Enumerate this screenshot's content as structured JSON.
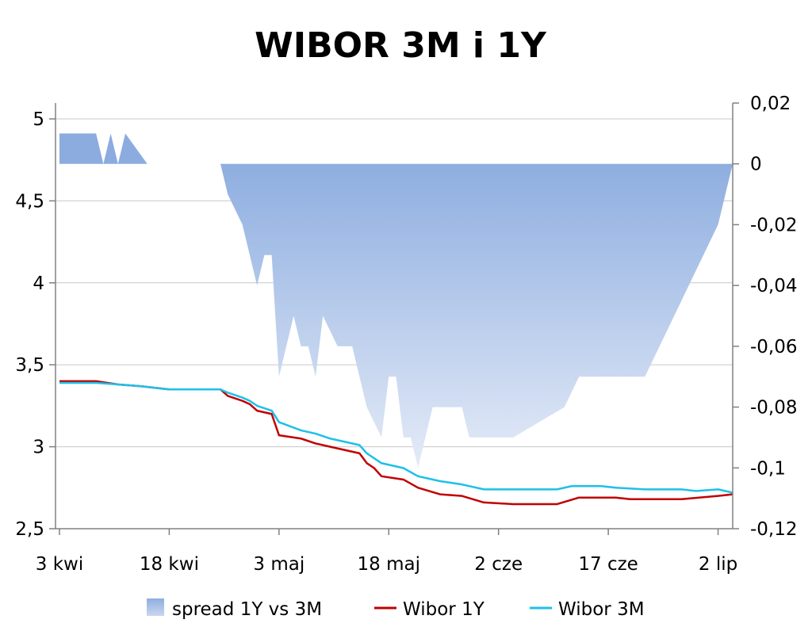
{
  "chart_data": {
    "type": "line",
    "title": "WIBOR 3M i 1Y",
    "x_tick_labels": [
      "3 kwi",
      "18 kwi",
      "3 maj",
      "18 maj",
      "2 cze",
      "17 cze",
      "2 lip"
    ],
    "x_tick_days": [
      0,
      15,
      30,
      45,
      60,
      75,
      90
    ],
    "x_range_days": [
      0,
      92
    ],
    "y_left": {
      "range": [
        2.5,
        5
      ],
      "ticks": [
        "2,5",
        "3",
        "3,5",
        "4",
        "4,5",
        "5"
      ],
      "tick_values": [
        2.5,
        3,
        3.5,
        4,
        4.5,
        5
      ]
    },
    "y_right": {
      "range": [
        -0.12,
        0.02
      ],
      "ticks": [
        "-0,12",
        "-0,1",
        "-0,08",
        "-0,06",
        "-0,04",
        "-0,02",
        "0",
        "0,02"
      ],
      "tick_values": [
        -0.12,
        -0.1,
        -0.08,
        -0.06,
        -0.04,
        -0.02,
        0,
        0.02
      ]
    },
    "grid": "horizontal",
    "legend_position": "bottom",
    "colors": {
      "spread": "#8cacdf",
      "wibor1y": "#c00000",
      "wibor3m": "#1ec0e8"
    },
    "series": [
      {
        "name": "spread 1Y vs 3M",
        "type": "area",
        "axis": "right",
        "points": [
          [
            0,
            0.01
          ],
          [
            5,
            0.01
          ],
          [
            6,
            0
          ],
          [
            7,
            0.01
          ],
          [
            8,
            0
          ],
          [
            9,
            0.01
          ],
          [
            12,
            0
          ],
          [
            22,
            0
          ],
          [
            23,
            -0.01
          ],
          [
            25,
            -0.02
          ],
          [
            26,
            -0.03
          ],
          [
            27,
            -0.04
          ],
          [
            28,
            -0.03
          ],
          [
            29,
            -0.03
          ],
          [
            30,
            -0.07
          ],
          [
            31,
            -0.06
          ],
          [
            32,
            -0.05
          ],
          [
            33,
            -0.06
          ],
          [
            34,
            -0.06
          ],
          [
            35,
            -0.07
          ],
          [
            36,
            -0.05
          ],
          [
            37,
            -0.055
          ],
          [
            38,
            -0.06
          ],
          [
            40,
            -0.06
          ],
          [
            41,
            -0.07
          ],
          [
            42,
            -0.08
          ],
          [
            44,
            -0.09
          ],
          [
            45,
            -0.07
          ],
          [
            46,
            -0.07
          ],
          [
            47,
            -0.09
          ],
          [
            48,
            -0.09
          ],
          [
            49,
            -0.1
          ],
          [
            50,
            -0.09
          ],
          [
            51,
            -0.08
          ],
          [
            55,
            -0.08
          ],
          [
            56,
            -0.09
          ],
          [
            62,
            -0.09
          ],
          [
            69,
            -0.08
          ],
          [
            71,
            -0.07
          ],
          [
            80,
            -0.07
          ],
          [
            82,
            -0.06
          ],
          [
            84,
            -0.05
          ],
          [
            86,
            -0.04
          ],
          [
            88,
            -0.03
          ],
          [
            90,
            -0.02
          ],
          [
            91,
            -0.01
          ],
          [
            92,
            0
          ]
        ]
      },
      {
        "name": "Wibor 1Y",
        "type": "line",
        "axis": "left",
        "points": [
          [
            0,
            3.4
          ],
          [
            5,
            3.4
          ],
          [
            8,
            3.38
          ],
          [
            11,
            3.37
          ],
          [
            15,
            3.35
          ],
          [
            22,
            3.35
          ],
          [
            23,
            3.31
          ],
          [
            25,
            3.28
          ],
          [
            26,
            3.26
          ],
          [
            27,
            3.22
          ],
          [
            29,
            3.2
          ],
          [
            30,
            3.07
          ],
          [
            33,
            3.05
          ],
          [
            35,
            3.02
          ],
          [
            37,
            3
          ],
          [
            39,
            2.98
          ],
          [
            41,
            2.96
          ],
          [
            42,
            2.9
          ],
          [
            43,
            2.87
          ],
          [
            44,
            2.82
          ],
          [
            47,
            2.8
          ],
          [
            49,
            2.75
          ],
          [
            52,
            2.71
          ],
          [
            55,
            2.7
          ],
          [
            58,
            2.66
          ],
          [
            62,
            2.65
          ],
          [
            68,
            2.65
          ],
          [
            71,
            2.69
          ],
          [
            76,
            2.69
          ],
          [
            78,
            2.68
          ],
          [
            85,
            2.68
          ],
          [
            90,
            2.7
          ],
          [
            92,
            2.71
          ]
        ]
      },
      {
        "name": "Wibor 3M",
        "type": "line",
        "axis": "left",
        "points": [
          [
            0,
            3.39
          ],
          [
            5,
            3.39
          ],
          [
            8,
            3.38
          ],
          [
            11,
            3.37
          ],
          [
            15,
            3.35
          ],
          [
            22,
            3.35
          ],
          [
            23,
            3.33
          ],
          [
            25,
            3.3
          ],
          [
            26,
            3.28
          ],
          [
            27,
            3.25
          ],
          [
            29,
            3.22
          ],
          [
            30,
            3.15
          ],
          [
            33,
            3.1
          ],
          [
            35,
            3.08
          ],
          [
            37,
            3.05
          ],
          [
            39,
            3.03
          ],
          [
            41,
            3.01
          ],
          [
            42,
            2.96
          ],
          [
            44,
            2.9
          ],
          [
            47,
            2.87
          ],
          [
            49,
            2.82
          ],
          [
            52,
            2.79
          ],
          [
            55,
            2.77
          ],
          [
            58,
            2.74
          ],
          [
            62,
            2.74
          ],
          [
            68,
            2.74
          ],
          [
            70,
            2.76
          ],
          [
            74,
            2.76
          ],
          [
            76,
            2.75
          ],
          [
            80,
            2.74
          ],
          [
            85,
            2.74
          ],
          [
            87,
            2.73
          ],
          [
            90,
            2.74
          ],
          [
            92,
            2.72
          ]
        ]
      }
    ]
  }
}
